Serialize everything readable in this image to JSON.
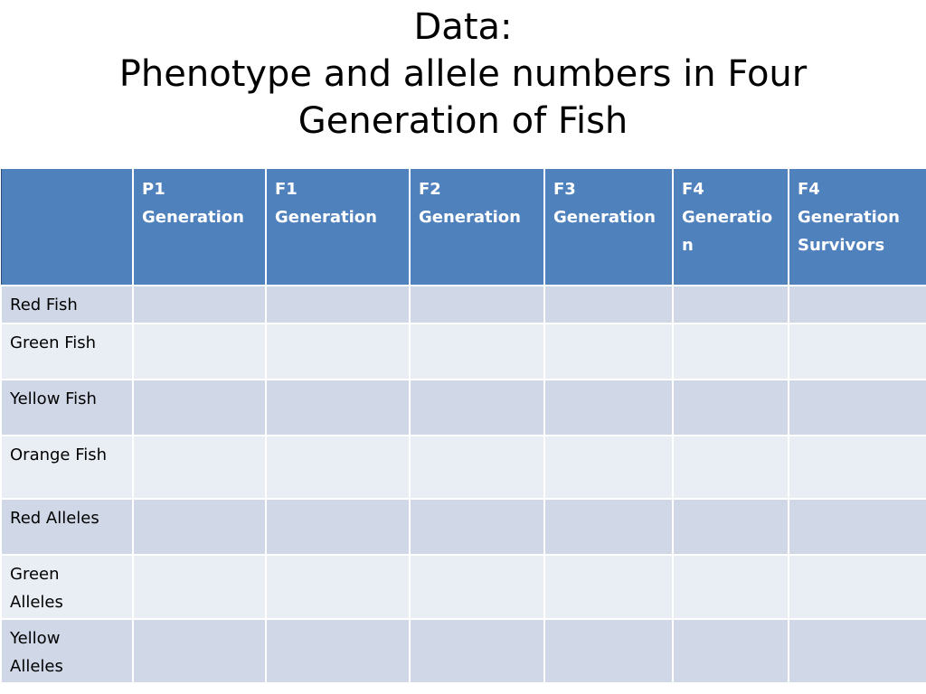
{
  "slide": {
    "title_line1": "Data:",
    "title_line2": "Phenotype and allele numbers in Four",
    "title_line3": "Generation of Fish"
  },
  "table": {
    "header_corner": "",
    "columns": [
      {
        "line1": "P1",
        "line2": "Generation",
        "line3": ""
      },
      {
        "line1": "F1",
        "line2": "Generation",
        "line3": ""
      },
      {
        "line1": "F2",
        "line2": "Generation",
        "line3": ""
      },
      {
        "line1": "F3",
        "line2": "Generation",
        "line3": ""
      },
      {
        "line1": "F4",
        "line2": "Generatio",
        "line3": "n"
      },
      {
        "line1": "F4",
        "line2": "Generation",
        "line3": "Survivors"
      }
    ],
    "rows": [
      {
        "label_line1": "Red Fish",
        "label_line2": ""
      },
      {
        "label_line1": "Green Fish",
        "label_line2": ""
      },
      {
        "label_line1": "Yellow Fish",
        "label_line2": ""
      },
      {
        "label_line1": "Orange Fish",
        "label_line2": ""
      },
      {
        "label_line1": "Red Alleles",
        "label_line2": ""
      },
      {
        "label_line1": "Green",
        "label_line2": "Alleles"
      },
      {
        "label_line1": "Yellow",
        "label_line2": "Alleles"
      }
    ]
  },
  "colors": {
    "header_bg": "#4f81bd",
    "row_odd_bg": "#d0d8e8",
    "row_even_bg": "#e9edf4"
  }
}
